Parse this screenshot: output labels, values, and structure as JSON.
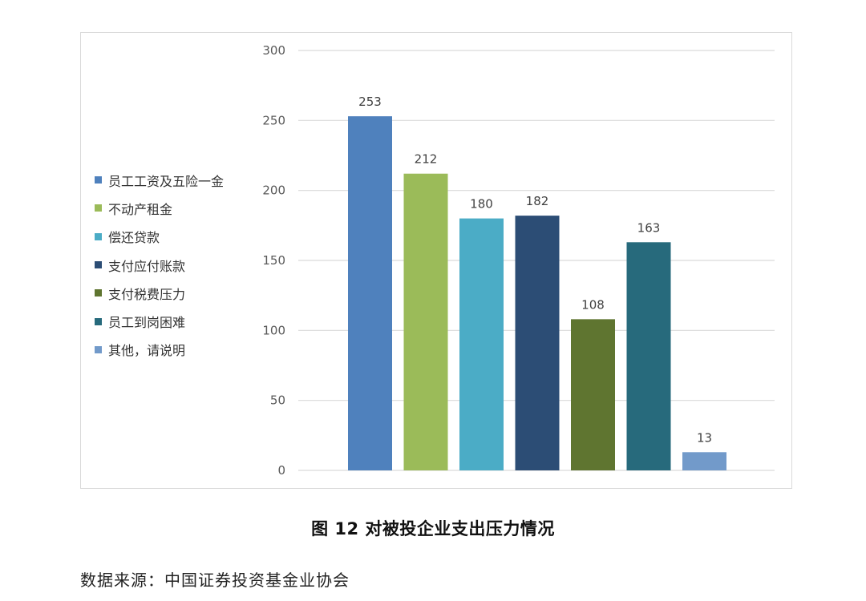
{
  "chart_data": {
    "type": "bar",
    "categories": [
      "员工工资及五险一金",
      "不动产租金",
      "偿还贷款",
      "支付应付账款",
      "支付税费压力",
      "员工到岗困难",
      "其他，请说明"
    ],
    "values": [
      253,
      212,
      180,
      182,
      108,
      163,
      13
    ],
    "data_labels": [
      "253",
      "212",
      "180",
      "182",
      "108",
      "163",
      "13"
    ],
    "colors": [
      "#4F81BD",
      "#9BBB59",
      "#4BACC6",
      "#2C4D75",
      "#5F7530",
      "#276A7C",
      "#729ACA"
    ],
    "ylim": [
      0,
      300
    ],
    "yticks": [
      0,
      50,
      100,
      150,
      200,
      250,
      300
    ],
    "ytick_labels": [
      "0",
      "50",
      "100",
      "150",
      "200",
      "250",
      "300"
    ],
    "grid": true,
    "legend_position": "left",
    "legend": [
      "员工工资及五险一金",
      "不动产租金",
      "偿还贷款",
      "支付应付账款",
      "支付税费压力",
      "员工到岗困难",
      "其他，请说明"
    ]
  },
  "caption": "图 12  对被投企业支出压力情况",
  "source": "数据来源：中国证券投资基金业协会"
}
